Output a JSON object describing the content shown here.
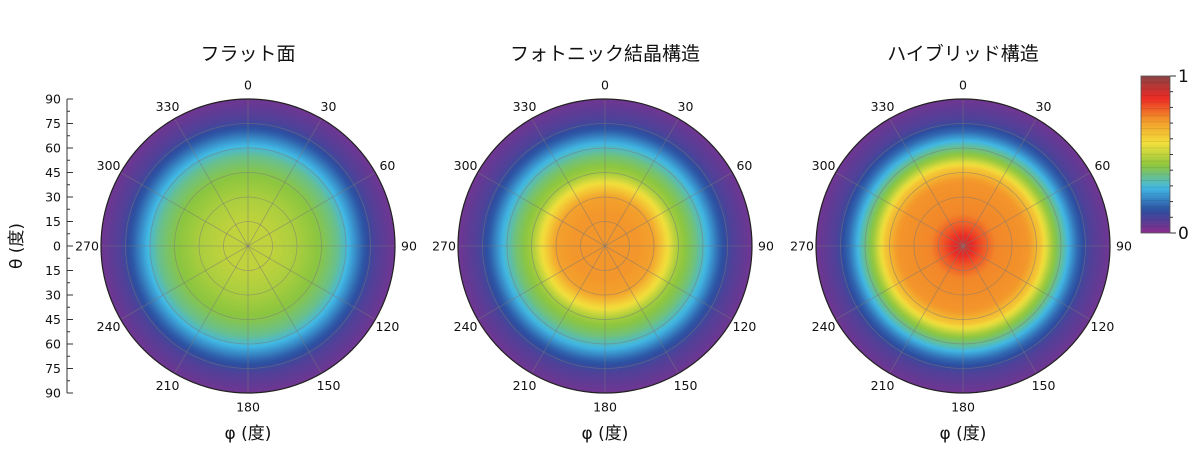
{
  "chart_data": {
    "type": "heatmap",
    "projection": "polar",
    "shared_axes": {
      "angular_label": "φ (度)",
      "angular_ticks": [
        0,
        30,
        60,
        90,
        120,
        150,
        180,
        210,
        240,
        270,
        300,
        330
      ],
      "radial_label": "θ (度)",
      "radial_ticks": [
        90,
        75,
        60,
        45,
        30,
        15,
        0,
        15,
        30,
        45,
        60,
        75,
        90
      ],
      "radial_range": [
        0,
        90
      ],
      "grid": true
    },
    "colorbar": {
      "range": [
        0,
        1
      ],
      "tick_labels": [
        "1",
        "0"
      ],
      "colors": [
        "#8a2c8c",
        "#2c4ea0",
        "#41b8e4",
        "#8cc63f",
        "#f3e03b",
        "#f39a2b",
        "#ec2a24",
        "#8a4444"
      ],
      "position": "right"
    },
    "panels": [
      {
        "title": "フラット面",
        "radial_profile": [
          [
            0,
            0.5
          ],
          [
            15,
            0.5
          ],
          [
            30,
            0.47
          ],
          [
            45,
            0.42
          ],
          [
            55,
            0.36
          ],
          [
            62,
            0.28
          ],
          [
            70,
            0.17
          ],
          [
            78,
            0.09
          ],
          [
            90,
            0.04
          ]
        ]
      },
      {
        "title": "フォトニック結晶構造",
        "radial_profile": [
          [
            0,
            0.72
          ],
          [
            20,
            0.72
          ],
          [
            30,
            0.7
          ],
          [
            38,
            0.58
          ],
          [
            45,
            0.46
          ],
          [
            55,
            0.38
          ],
          [
            63,
            0.28
          ],
          [
            70,
            0.17
          ],
          [
            78,
            0.09
          ],
          [
            90,
            0.04
          ]
        ]
      },
      {
        "title": "ハイブリッド構造",
        "radial_profile": [
          [
            0,
            0.92
          ],
          [
            10,
            0.82
          ],
          [
            20,
            0.74
          ],
          [
            40,
            0.72
          ],
          [
            48,
            0.62
          ],
          [
            55,
            0.45
          ],
          [
            62,
            0.33
          ],
          [
            70,
            0.18
          ],
          [
            78,
            0.09
          ],
          [
            90,
            0.04
          ]
        ]
      }
    ]
  }
}
